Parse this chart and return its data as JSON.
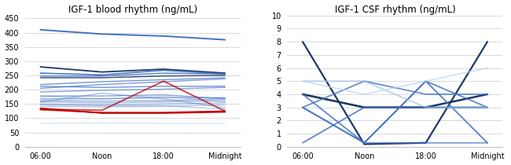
{
  "title1": "IGF-1 blood rhythm (ng/mL)",
  "title2": "IGF-1 CSF rhythm (ng/mL)",
  "xtick_labels": [
    "06:00",
    "Noon",
    "18:00",
    "Midnight"
  ],
  "blood_ylim": [
    0,
    460
  ],
  "blood_yticks": [
    0,
    50,
    100,
    150,
    200,
    250,
    300,
    350,
    400,
    450
  ],
  "csf_ylim": [
    0,
    10
  ],
  "csf_yticks": [
    0,
    1,
    2,
    3,
    4,
    5,
    6,
    7,
    8,
    9,
    10
  ],
  "blood_lines": [
    {
      "values": [
        410,
        395,
        388,
        375
      ],
      "color": "#4472C4",
      "lw": 1.4,
      "alpha": 1.0
    },
    {
      "values": [
        280,
        262,
        272,
        258
      ],
      "color": "#1F3864",
      "lw": 1.3,
      "alpha": 1.0
    },
    {
      "values": [
        258,
        252,
        268,
        255
      ],
      "color": "#4472C4",
      "lw": 1.2,
      "alpha": 0.95
    },
    {
      "values": [
        248,
        248,
        258,
        255
      ],
      "color": "#4472C4",
      "lw": 1.1,
      "alpha": 0.85
    },
    {
      "values": [
        242,
        242,
        248,
        250
      ],
      "color": "#1F3864",
      "lw": 1.1,
      "alpha": 0.85
    },
    {
      "values": [
        218,
        228,
        235,
        242
      ],
      "color": "#4472C4",
      "lw": 1.0,
      "alpha": 0.75
    },
    {
      "values": [
        205,
        218,
        228,
        238
      ],
      "color": "#4472C4",
      "lw": 1.0,
      "alpha": 0.7
    },
    {
      "values": [
        212,
        208,
        212,
        212
      ],
      "color": "#4472C4",
      "lw": 1.0,
      "alpha": 0.75
    },
    {
      "values": [
        192,
        198,
        202,
        208
      ],
      "color": "#4472C4",
      "lw": 1.0,
      "alpha": 0.65
    },
    {
      "values": [
        178,
        178,
        182,
        168
      ],
      "color": "#4472C4",
      "lw": 1.0,
      "alpha": 0.65
    },
    {
      "values": [
        168,
        168,
        172,
        172
      ],
      "color": "#4472C4",
      "lw": 1.0,
      "alpha": 0.6
    },
    {
      "values": [
        162,
        160,
        162,
        168
      ],
      "color": "#4472C4",
      "lw": 1.0,
      "alpha": 0.55
    },
    {
      "values": [
        157,
        154,
        157,
        162
      ],
      "color": "#4472C4",
      "lw": 1.0,
      "alpha": 0.5
    },
    {
      "values": [
        150,
        147,
        150,
        154
      ],
      "color": "#4472C4",
      "lw": 1.0,
      "alpha": 0.45
    },
    {
      "values": [
        142,
        140,
        142,
        147
      ],
      "color": "#4472C4",
      "lw": 1.0,
      "alpha": 0.4
    },
    {
      "values": [
        132,
        128,
        230,
        125
      ],
      "color": "#C00000",
      "lw": 1.3,
      "alpha": 0.75
    },
    {
      "values": [
        135,
        118,
        118,
        122
      ],
      "color": "#C00000",
      "lw": 1.3,
      "alpha": 1.0
    },
    {
      "values": [
        130,
        120,
        120,
        125
      ],
      "color": "#C00000",
      "lw": 1.3,
      "alpha": 0.9
    },
    {
      "values": [
        82,
        84,
        82,
        82
      ],
      "color": "#BDD7EE",
      "lw": 1.0,
      "alpha": 0.6
    },
    {
      "values": [
        147,
        144,
        144,
        132
      ],
      "color": "#4472C4",
      "lw": 1.0,
      "alpha": 0.38
    },
    {
      "values": [
        157,
        188,
        168,
        137
      ],
      "color": "#4472C4",
      "lw": 1.0,
      "alpha": 0.45
    },
    {
      "values": [
        177,
        168,
        177,
        157
      ],
      "color": "#4472C4",
      "lw": 1.0,
      "alpha": 0.33
    }
  ],
  "csf_lines": [
    {
      "values": [
        8,
        0.2,
        0.3,
        8
      ],
      "color": "#1F3864",
      "lw": 1.6,
      "alpha": 1.0
    },
    {
      "values": [
        4,
        3,
        3,
        4
      ],
      "color": "#1F3864",
      "lw": 1.8,
      "alpha": 1.0
    },
    {
      "values": [
        4,
        3,
        3,
        3
      ],
      "color": "#1F3864",
      "lw": 1.4,
      "alpha": 0.9
    },
    {
      "values": [
        3,
        0.3,
        5,
        0.3
      ],
      "color": "#4472C4",
      "lw": 1.3,
      "alpha": 0.9
    },
    {
      "values": [
        4,
        0.3,
        5,
        3
      ],
      "color": "#4472C4",
      "lw": 1.3,
      "alpha": 0.85
    },
    {
      "values": [
        0.3,
        3,
        3,
        3
      ],
      "color": "#4472C4",
      "lw": 1.3,
      "alpha": 0.85
    },
    {
      "values": [
        3,
        5,
        4,
        4
      ],
      "color": "#4472C4",
      "lw": 1.3,
      "alpha": 0.8
    },
    {
      "values": [
        5,
        5,
        3,
        3
      ],
      "color": "#9DC3E6",
      "lw": 1.3,
      "alpha": 0.7
    },
    {
      "values": [
        3,
        0.3,
        0.3,
        0.3
      ],
      "color": "#4472C4",
      "lw": 1.3,
      "alpha": 0.7
    },
    {
      "values": [
        5,
        4,
        5,
        6
      ],
      "color": "#BDD7EE",
      "lw": 1.3,
      "alpha": 0.7
    }
  ],
  "bg_color": "#FFFFFF",
  "plot_bg_color": "#FFFFFF",
  "grid_color": "#D9D9D9",
  "title_fontsize": 8.5,
  "tick_fontsize": 7,
  "spine_color": "#BFBFBF"
}
